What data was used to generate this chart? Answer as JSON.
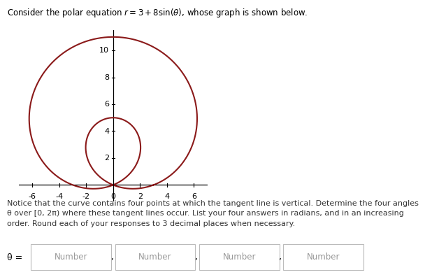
{
  "title_text": "Consider the polar equation $r = 3 + 8\\sin(\\theta)$, whose graph is shown below.",
  "curve_color": "#8B1A1A",
  "curve_linewidth": 1.5,
  "axis_color": "#000000",
  "background_color": "#ffffff",
  "xlim": [
    -7,
    7
  ],
  "ylim": [
    -1.2,
    11.5
  ],
  "xticks": [
    -6,
    -4,
    -2,
    0,
    2,
    4,
    6
  ],
  "yticks": [
    2,
    4,
    6,
    8,
    10
  ],
  "body_text": "Notice that the curve contains four points at which the tangent line is vertical. Determine the four angles\nθ over [0, 2π) where these tangent lines occur. List your four answers in radians, and in an increasing\norder. Round each of your responses to 3 decimal places when necessary.",
  "theta_label": "θ =",
  "input_labels": [
    "Number",
    "Number",
    "Number",
    "Number"
  ],
  "box_edge_color": "#bbbbbb",
  "box_text_color": "#999999"
}
